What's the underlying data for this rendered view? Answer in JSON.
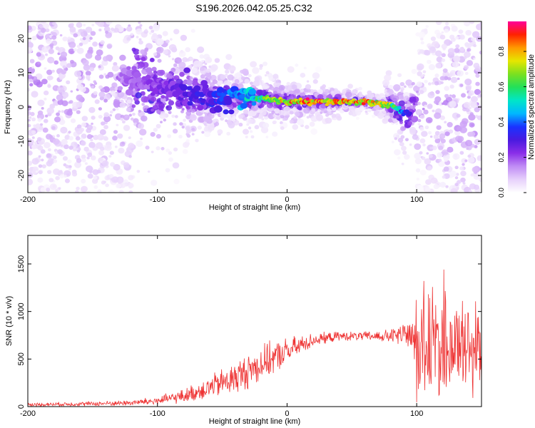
{
  "figure_title": "S196.2026.042.05.25.C32",
  "colors": {
    "snr_line": "#ee3333",
    "axis": "#000000",
    "colormap": [
      "#ffffff",
      "#e6d0fb",
      "#c08cf5",
      "#8a2ee8",
      "#4a1ae0",
      "#1a33ff",
      "#00b7ff",
      "#00e6c8",
      "#22e05a",
      "#7be020",
      "#e6e600",
      "#ff9900",
      "#ff2200",
      "#ff0099"
    ]
  },
  "chart_data": [
    {
      "type": "heatmap",
      "title": "",
      "xlabel": "Height of straight line (km)",
      "ylabel": "Frequency (Hz)",
      "xlim": [
        -200,
        150
      ],
      "ylim": [
        -25,
        25
      ],
      "xticks": [
        -200,
        -100,
        0,
        100
      ],
      "yticks": [
        -20,
        -10,
        0,
        10,
        20
      ],
      "colorbar": {
        "label": "Normalized spectral amplitude",
        "range": [
          0,
          0.97
        ],
        "ticks": [
          0.0,
          0.2,
          0.4,
          0.6,
          0.8
        ]
      },
      "ridge": {
        "description_points_x_km": [
          -120,
          -100,
          -80,
          -60,
          -40,
          -20,
          0,
          20,
          40,
          60,
          80,
          90
        ],
        "description_points_freq_hz": [
          8,
          6,
          4,
          3,
          3,
          2.5,
          1.5,
          1.5,
          1.5,
          1.5,
          0.5,
          -1.5
        ],
        "peak_amplitude": [
          0.2,
          0.25,
          0.3,
          0.35,
          0.45,
          0.65,
          0.9,
          0.95,
          0.95,
          0.9,
          0.8,
          0.4
        ]
      }
    },
    {
      "type": "line",
      "title": "",
      "xlabel": "Height of straight line (km)",
      "ylabel": "SNR (10 * v/v)",
      "xlim": [
        -200,
        150
      ],
      "ylim": [
        0,
        1800
      ],
      "xticks": [
        -200,
        -100,
        0,
        100
      ],
      "yticks": [
        0,
        500,
        1000,
        1500
      ],
      "series": [
        {
          "name": "SNR",
          "envelope_x_km": [
            -200,
            -150,
            -120,
            -100,
            -80,
            -60,
            -40,
            -20,
            0,
            20,
            40,
            60,
            80,
            95,
            100,
            120,
            140,
            150
          ],
          "mean_y": [
            20,
            30,
            40,
            60,
            110,
            200,
            300,
            450,
            580,
            700,
            740,
            740,
            740,
            760,
            650,
            650,
            620,
            600
          ],
          "spread_y": [
            15,
            20,
            25,
            40,
            60,
            100,
            150,
            160,
            120,
            60,
            40,
            40,
            60,
            150,
            550,
            500,
            450,
            450
          ]
        }
      ]
    }
  ]
}
